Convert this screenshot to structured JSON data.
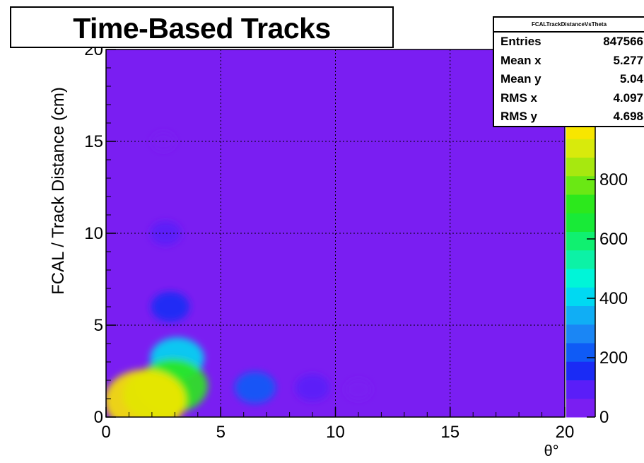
{
  "chart_data": {
    "type": "heatmap",
    "title": "Time-Based Tracks",
    "xlabel": "θ°",
    "ylabel": "FCAL / Track Distance (cm)",
    "xlim": [
      0,
      20
    ],
    "ylim": [
      0,
      20
    ],
    "x_ticks": [
      "0",
      "5",
      "10",
      "15",
      "20"
    ],
    "y_ticks": [
      "0",
      "5",
      "10",
      "15",
      "20"
    ],
    "colorbar": {
      "range": [
        0,
        1000
      ],
      "ticks": [
        "0",
        "200",
        "400",
        "600",
        "800"
      ],
      "palette": [
        "#7a1ef2",
        "#5a1ef8",
        "#1a2bf5",
        "#0f5bf6",
        "#1a86f5",
        "#10aef5",
        "#00d9f2",
        "#00f5d8",
        "#0cf2a6",
        "#10f070",
        "#18ea37",
        "#2ce81c",
        "#6ae814",
        "#a7e80f",
        "#d8ea0c",
        "#f8e600"
      ]
    },
    "background_color": "#7a1ef2",
    "grid": true,
    "hotspots": [
      {
        "x": 1.7,
        "y": 0.9,
        "density": 1000
      },
      {
        "x": 2.9,
        "y": 1.7,
        "density": 720
      },
      {
        "x": 2.2,
        "y": 1.2,
        "density": 650
      },
      {
        "x": 3.1,
        "y": 3.2,
        "density": 380
      },
      {
        "x": 2.8,
        "y": 6.0,
        "density": 160
      },
      {
        "x": 2.6,
        "y": 10.0,
        "density": 90
      },
      {
        "x": 2.5,
        "y": 15.0,
        "density": 40
      },
      {
        "x": 6.5,
        "y": 1.6,
        "density": 190
      },
      {
        "x": 9.0,
        "y": 1.6,
        "density": 120
      },
      {
        "x": 11.0,
        "y": 1.5,
        "density": 55
      }
    ],
    "stats": {
      "name": "FCALTrackDistanceVsTheta",
      "entries_label": "Entries",
      "entries_value": "847566",
      "mean_x_label": "Mean x",
      "mean_x_value": "5.277",
      "mean_y_label": "Mean y",
      "mean_y_value": "5.04",
      "rms_x_label": "RMS x",
      "rms_x_value": "4.097",
      "rms_y_label": "RMS y",
      "rms_y_value": "4.698"
    }
  }
}
